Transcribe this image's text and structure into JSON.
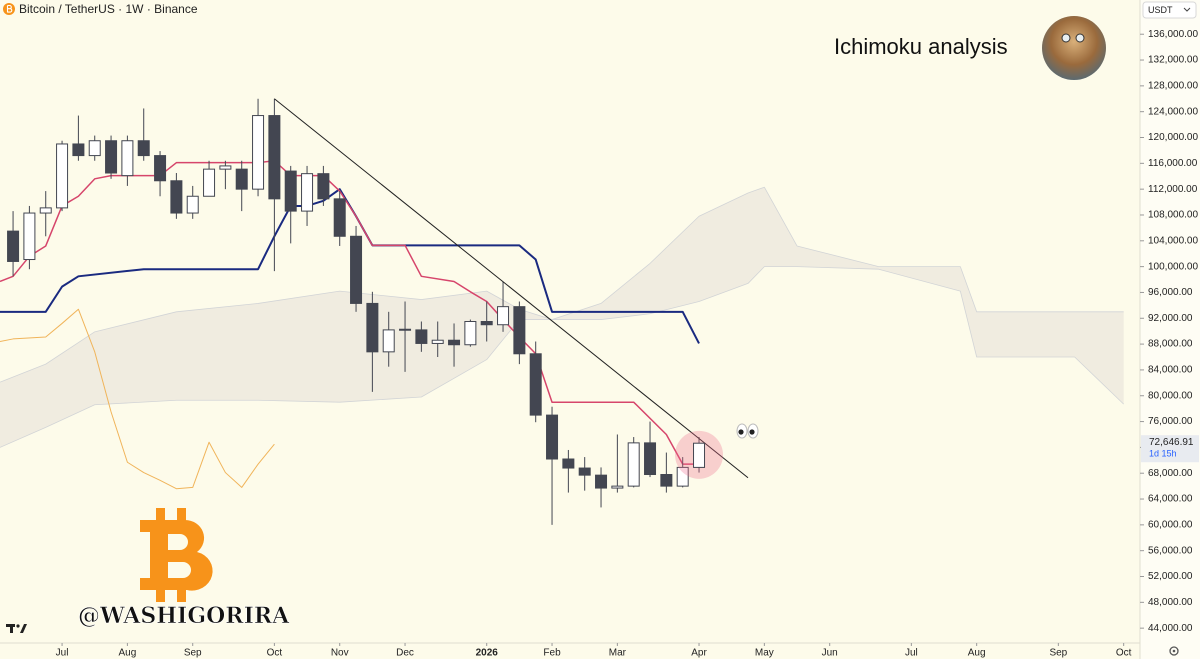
{
  "chart_data": {
    "type": "candlestick",
    "title": "Bitcoin / TetherUS · 1W · Binance",
    "annotation": "Ichimoku analysis",
    "watermark": "@WASHIGORIRA",
    "currency": "USDT",
    "countdown": "1d 15h",
    "last_price": {
      "value": 72646.91,
      "label": "72,646.91"
    },
    "xlim": [
      -0.8,
      69
    ],
    "ylim": [
      41700,
      141300
    ],
    "xticks": [
      {
        "value": 3,
        "label": "Jul"
      },
      {
        "value": 7,
        "label": "Aug"
      },
      {
        "value": 11,
        "label": "Sep"
      },
      {
        "value": 16,
        "label": "Oct"
      },
      {
        "value": 20,
        "label": "Nov"
      },
      {
        "value": 24,
        "label": "Dec"
      },
      {
        "value": 29,
        "label": "2026"
      },
      {
        "value": 33,
        "label": "Feb"
      },
      {
        "value": 37,
        "label": "Mar"
      },
      {
        "value": 42,
        "label": "Apr"
      },
      {
        "value": 46,
        "label": "May"
      },
      {
        "value": 50,
        "label": "Jun"
      },
      {
        "value": 55,
        "label": "Jul"
      },
      {
        "value": 59,
        "label": "Aug"
      },
      {
        "value": 64,
        "label": "Sep"
      },
      {
        "value": 68,
        "label": "Oct"
      }
    ],
    "yticks": [
      {
        "value": 44000,
        "label": "44,000.00"
      },
      {
        "value": 48000,
        "label": "48,000.00"
      },
      {
        "value": 52000,
        "label": "52,000.00"
      },
      {
        "value": 56000,
        "label": "56,000.00"
      },
      {
        "value": 60000,
        "label": "60,000.00"
      },
      {
        "value": 64000,
        "label": "64,000.00"
      },
      {
        "value": 68000,
        "label": "68,000.00"
      },
      {
        "value": 72000,
        "label": "72,000.00"
      },
      {
        "value": 76000,
        "label": "76,000.00"
      },
      {
        "value": 80000,
        "label": "80,000.00"
      },
      {
        "value": 84000,
        "label": "84,000.00"
      },
      {
        "value": 88000,
        "label": "88,000.00"
      },
      {
        "value": 92000,
        "label": "92,000.00"
      },
      {
        "value": 96000,
        "label": "96,000.00"
      },
      {
        "value": 100000,
        "label": "100,000.00"
      },
      {
        "value": 104000,
        "label": "104,000.00"
      },
      {
        "value": 108000,
        "label": "108,000.00"
      },
      {
        "value": 112000,
        "label": "112,000.00"
      },
      {
        "value": 116000,
        "label": "116,000.00"
      },
      {
        "value": 120000,
        "label": "120,000.00"
      },
      {
        "value": 124000,
        "label": "124,000.00"
      },
      {
        "value": 128000,
        "label": "128,000.00"
      },
      {
        "value": 132000,
        "label": "132,000.00"
      },
      {
        "value": 136000,
        "label": "136,000.00"
      }
    ],
    "candles": {
      "up_color": "#ffffff",
      "down_color": "#434651",
      "edge_color": "#434651",
      "open": [
        105500,
        101100,
        108300,
        109100,
        119000,
        117200,
        119500,
        114100,
        119500,
        117200,
        113300,
        108300,
        110900,
        115100,
        115100,
        112000,
        123400,
        114800,
        108600,
        114400,
        110500,
        104700,
        94300,
        86800,
        90200,
        90200,
        88100,
        88600,
        87900,
        91500,
        91000,
        93800,
        86500,
        77000,
        70200,
        68800,
        67700,
        65700,
        66000,
        72700,
        67800,
        66000,
        68900
      ],
      "high": [
        108600,
        109400,
        111700,
        119500,
        123400,
        120300,
        120300,
        120300,
        124500,
        117900,
        114500,
        112500,
        116400,
        116400,
        116400,
        126000,
        126000,
        115600,
        115600,
        115600,
        111700,
        106300,
        96100,
        93000,
        94600,
        91500,
        91500,
        91200,
        91800,
        94600,
        97700,
        94600,
        88400,
        78300,
        71600,
        70500,
        68900,
        74000,
        73600,
        76000,
        71200,
        70500,
        73600
      ],
      "low": [
        98500,
        99600,
        104700,
        108600,
        116400,
        116400,
        113600,
        112500,
        116400,
        110900,
        107400,
        107400,
        110900,
        112000,
        108600,
        110900,
        99300,
        103600,
        106300,
        109400,
        103200,
        93000,
        80600,
        84500,
        83700,
        86800,
        86000,
        84500,
        87600,
        88400,
        89900,
        84900,
        75900,
        60000,
        65000,
        65300,
        62700,
        65000,
        65800,
        67400,
        65000,
        65800,
        68100
      ],
      "close": [
        100800,
        108300,
        109100,
        119000,
        117200,
        119500,
        114500,
        119500,
        117200,
        113300,
        108300,
        110900,
        115100,
        115600,
        112000,
        123400,
        110500,
        108600,
        114400,
        110500,
        104700,
        94300,
        86800,
        90200,
        90300,
        88100,
        88600,
        87900,
        91500,
        91000,
        93800,
        86500,
        77000,
        70200,
        68800,
        67700,
        65700,
        66000,
        72700,
        67800,
        66000,
        68900,
        72646.91
      ]
    },
    "tenkan": {
      "color": "#d6456b",
      "x": [
        -0.8,
        0,
        1,
        2,
        3,
        4,
        5,
        6,
        9,
        10,
        15,
        16,
        17,
        18,
        19,
        20,
        21,
        22,
        24,
        25,
        27,
        28,
        29,
        30,
        31,
        32,
        33,
        38,
        40,
        41,
        42
      ],
      "values": [
        97700,
        98500,
        101600,
        103200,
        109400,
        110900,
        113600,
        114100,
        114100,
        116100,
        116100,
        116400,
        114100,
        114100,
        114100,
        111700,
        107800,
        103300,
        103300,
        98500,
        97700,
        96100,
        94600,
        91800,
        89100,
        86500,
        79000,
        79000,
        74000,
        69400,
        69400
      ]
    },
    "kijun": {
      "color": "#1a2a80",
      "x": [
        -0.8,
        2,
        3,
        4,
        8,
        15,
        16,
        17,
        18,
        19,
        20,
        21,
        22,
        31,
        32,
        33,
        41,
        42
      ],
      "values": [
        93000,
        93000,
        96900,
        98500,
        99600,
        99600,
        104700,
        109400,
        109400,
        110200,
        112000,
        107800,
        103300,
        103300,
        101100,
        93000,
        93000,
        88100
      ]
    },
    "lagging": {
      "color": "#f0b45a",
      "x": [
        -0.8,
        0,
        2,
        3,
        4,
        5,
        6,
        7,
        8,
        9,
        10,
        11,
        12,
        13,
        14,
        15,
        16
      ],
      "values": [
        88400,
        88800,
        89100,
        91200,
        93400,
        86800,
        77500,
        69700,
        68100,
        66900,
        65600,
        65800,
        72800,
        68100,
        65800,
        69400,
        72500
      ]
    },
    "cloud": {
      "color": "#e9e6dc",
      "edge_color": "#d2d4d6",
      "x": [
        -0.8,
        2,
        5,
        10,
        15,
        20,
        25,
        29,
        31,
        33,
        36,
        39,
        42,
        45,
        46,
        48,
        53,
        58,
        59,
        65,
        68
      ],
      "span_a": [
        82100,
        84900,
        89900,
        93000,
        94300,
        96200,
        94900,
        96200,
        93400,
        91800,
        94300,
        100500,
        107800,
        111400,
        112300,
        103200,
        100000,
        100000,
        93000,
        93000,
        93000
      ],
      "span_b": [
        72000,
        75100,
        78600,
        79300,
        79300,
        79000,
        79800,
        85600,
        91800,
        91800,
        91800,
        92700,
        94600,
        97400,
        100000,
        100000,
        99600,
        96200,
        86000,
        86000,
        78700
      ]
    },
    "trendline": {
      "color": "#222222",
      "x": [
        16,
        45
      ],
      "values": [
        126000,
        67300
      ]
    }
  }
}
